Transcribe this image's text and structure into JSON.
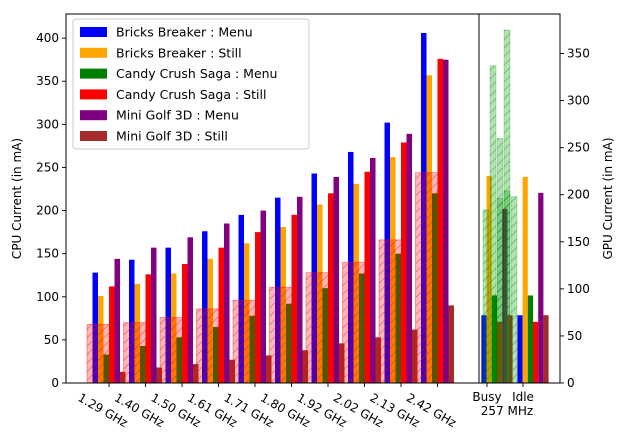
{
  "chart_data": {
    "type": "bar",
    "x_groups": [
      "1.29 GHz",
      "1.40 GHz",
      "1.50 GHz",
      "1.61 GHz",
      "1.71 GHz",
      "1.80 GHz",
      "1.92 GHz",
      "2.02 GHz",
      "2.13 GHz",
      "2.42 GHz"
    ],
    "gpu_groups": [
      "Busy",
      "Idle"
    ],
    "gpu_freq_label": "257 MHz",
    "ylabel_left": "CPU Current (in mA)",
    "ylabel_right": "GPU Current (in mA)",
    "ylim_left": [
      0,
      428
    ],
    "ylim_right": [
      0,
      392
    ],
    "yticks_left": [
      0,
      50,
      100,
      150,
      200,
      250,
      300,
      350,
      400
    ],
    "yticks_right": [
      0,
      50,
      100,
      150,
      200,
      250,
      300,
      350
    ],
    "legend_position": "upper-left",
    "series": [
      {
        "name": "Bricks Breaker : Menu",
        "color": "#0000ff",
        "cpu": [
          128,
          143,
          157,
          176,
          195,
          215,
          243,
          268,
          302,
          406
        ],
        "gpu": [
          72,
          72
        ]
      },
      {
        "name": "Bricks Breaker : Still",
        "color": "#ffa500",
        "cpu": [
          101,
          115,
          127,
          144,
          162,
          181,
          207,
          231,
          262,
          357
        ],
        "gpu": [
          220,
          219
        ]
      },
      {
        "name": "Candy Crush Saga : Menu",
        "color": "#008000",
        "cpu": [
          33,
          43,
          53,
          65,
          78,
          92,
          110,
          127,
          150,
          220
        ],
        "gpu": [
          93,
          93
        ]
      },
      {
        "name": "Candy Crush Saga : Still",
        "color": "#ff0000",
        "cpu": [
          112,
          126,
          138,
          157,
          175,
          195,
          220,
          245,
          279,
          376
        ],
        "gpu": [
          65,
          65
        ]
      },
      {
        "name": "Mini Golf 3D : Menu",
        "color": "#800080",
        "cpu": [
          144,
          157,
          169,
          185,
          200,
          216,
          239,
          261,
          289,
          375
        ],
        "gpu": [
          185,
          202
        ]
      },
      {
        "name": "Mini Golf 3D : Still",
        "color": "#a52a2a",
        "cpu": [
          13,
          18,
          22,
          27,
          32,
          38,
          46,
          53,
          62,
          90
        ],
        "gpu": [
          72,
          72
        ]
      }
    ],
    "cpu_overlay_red_hatched": [
      68,
      70,
      76,
      86,
      96,
      111,
      128,
      140,
      166,
      244
    ],
    "gpu_overlay_green_hatched": {
      "busy": [
        184,
        337,
        260,
        204
      ],
      "idle": [
        196,
        375,
        198
      ]
    },
    "grid": false
  }
}
